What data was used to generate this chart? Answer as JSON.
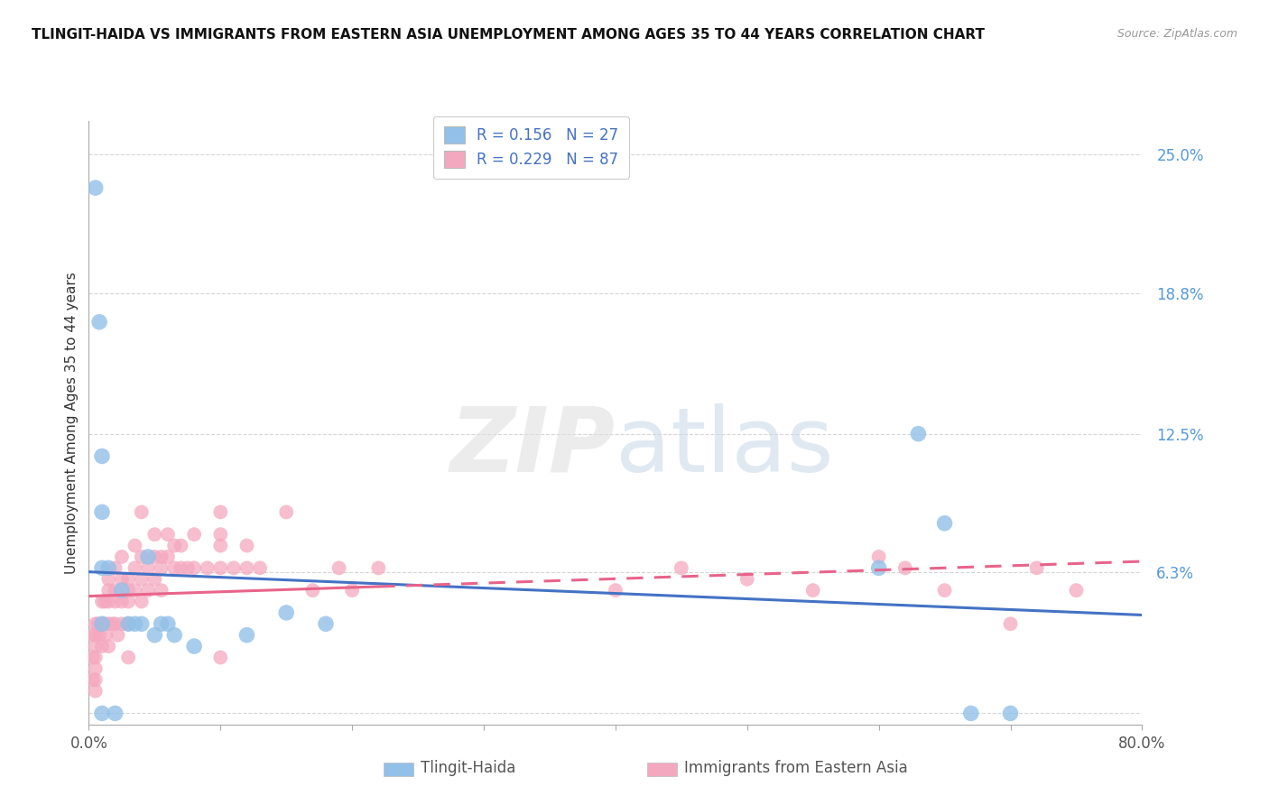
{
  "title": "TLINGIT-HAIDA VS IMMIGRANTS FROM EASTERN ASIA UNEMPLOYMENT AMONG AGES 35 TO 44 YEARS CORRELATION CHART",
  "source": "Source: ZipAtlas.com",
  "ylabel": "Unemployment Among Ages 35 to 44 years",
  "xlim": [
    0.0,
    0.8
  ],
  "ylim": [
    -0.005,
    0.265
  ],
  "yticks": [
    0.0,
    0.063,
    0.125,
    0.188,
    0.25
  ],
  "ytick_labels": [
    "",
    "6.3%",
    "12.5%",
    "18.8%",
    "25.0%"
  ],
  "grid_color": "#cccccc",
  "background_color": "#ffffff",
  "blue_color": "#92c0e8",
  "pink_color": "#f4a8bf",
  "line_blue_color": "#4472c4",
  "line_pink_color": "#e8648a",
  "legend_blue_label": "Tlingit-Haida",
  "legend_pink_label": "Immigrants from Eastern Asia",
  "blue_R": 0.156,
  "blue_N": 27,
  "pink_R": 0.229,
  "pink_N": 87,
  "tlingit_x": [
    0.005,
    0.008,
    0.01,
    0.01,
    0.01,
    0.01,
    0.01,
    0.015,
    0.02,
    0.025,
    0.03,
    0.035,
    0.04,
    0.045,
    0.05,
    0.055,
    0.06,
    0.065,
    0.08,
    0.12,
    0.15,
    0.18,
    0.6,
    0.63,
    0.65,
    0.67,
    0.7
  ],
  "tlingit_y": [
    0.235,
    0.175,
    0.115,
    0.09,
    0.065,
    0.04,
    0.0,
    0.065,
    0.0,
    0.055,
    0.04,
    0.04,
    0.04,
    0.07,
    0.035,
    0.04,
    0.04,
    0.035,
    0.03,
    0.035,
    0.045,
    0.04,
    0.065,
    0.125,
    0.085,
    0.0,
    0.0
  ],
  "eastern_asia_x": [
    0.003,
    0.003,
    0.003,
    0.005,
    0.005,
    0.005,
    0.005,
    0.005,
    0.005,
    0.005,
    0.007,
    0.008,
    0.01,
    0.01,
    0.01,
    0.012,
    0.012,
    0.013,
    0.015,
    0.015,
    0.015,
    0.015,
    0.015,
    0.018,
    0.02,
    0.02,
    0.02,
    0.02,
    0.022,
    0.025,
    0.025,
    0.025,
    0.025,
    0.03,
    0.03,
    0.03,
    0.03,
    0.03,
    0.035,
    0.035,
    0.035,
    0.04,
    0.04,
    0.04,
    0.04,
    0.045,
    0.045,
    0.05,
    0.05,
    0.05,
    0.055,
    0.055,
    0.055,
    0.06,
    0.06,
    0.065,
    0.065,
    0.07,
    0.07,
    0.075,
    0.08,
    0.08,
    0.09,
    0.1,
    0.1,
    0.1,
    0.1,
    0.1,
    0.11,
    0.12,
    0.12,
    0.13,
    0.15,
    0.17,
    0.19,
    0.2,
    0.22,
    0.4,
    0.45,
    0.5,
    0.55,
    0.6,
    0.62,
    0.65,
    0.7,
    0.72,
    0.75
  ],
  "eastern_asia_y": [
    0.035,
    0.025,
    0.015,
    0.04,
    0.035,
    0.03,
    0.025,
    0.02,
    0.015,
    0.01,
    0.04,
    0.035,
    0.05,
    0.04,
    0.03,
    0.05,
    0.04,
    0.035,
    0.06,
    0.055,
    0.05,
    0.04,
    0.03,
    0.04,
    0.065,
    0.055,
    0.05,
    0.04,
    0.035,
    0.07,
    0.06,
    0.05,
    0.04,
    0.06,
    0.055,
    0.05,
    0.04,
    0.025,
    0.075,
    0.065,
    0.055,
    0.09,
    0.07,
    0.06,
    0.05,
    0.065,
    0.055,
    0.08,
    0.07,
    0.06,
    0.07,
    0.065,
    0.055,
    0.08,
    0.07,
    0.075,
    0.065,
    0.075,
    0.065,
    0.065,
    0.08,
    0.065,
    0.065,
    0.09,
    0.08,
    0.075,
    0.065,
    0.025,
    0.065,
    0.075,
    0.065,
    0.065,
    0.09,
    0.055,
    0.065,
    0.055,
    0.065,
    0.055,
    0.065,
    0.06,
    0.055,
    0.07,
    0.065,
    0.055,
    0.04,
    0.065,
    0.055
  ]
}
